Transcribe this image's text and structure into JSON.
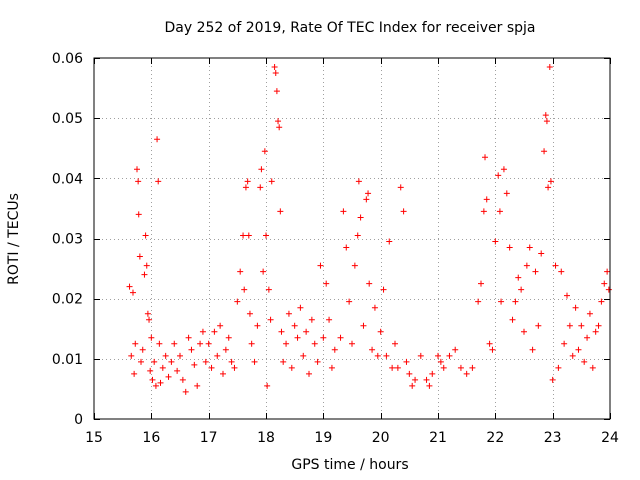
{
  "chart_data": {
    "type": "scatter",
    "title": "Day 252 of 2019, Rate Of TEC Index for receiver spja",
    "xlabel": "GPS time / hours",
    "ylabel": "ROTI / TECUs",
    "xlim": [
      15,
      24
    ],
    "ylim": [
      0,
      0.06
    ],
    "xticks": [
      15,
      16,
      17,
      18,
      19,
      20,
      21,
      22,
      23,
      24
    ],
    "xtick_labels": [
      "15",
      "16",
      "17",
      "18",
      "19",
      "20",
      "21",
      "22",
      "23",
      "24"
    ],
    "yticks": [
      0,
      0.01,
      0.02,
      0.03,
      0.04,
      0.05,
      0.06
    ],
    "ytick_labels": [
      "0",
      "0.01",
      "0.02",
      "0.03",
      "0.04",
      "0.05",
      "0.06"
    ],
    "grid": true,
    "marker": "+",
    "color": "#ff0000",
    "series": [
      {
        "name": "ROTI",
        "points": [
          [
            15.62,
            0.022
          ],
          [
            15.65,
            0.0105
          ],
          [
            15.68,
            0.021
          ],
          [
            15.7,
            0.0075
          ],
          [
            15.72,
            0.0125
          ],
          [
            15.75,
            0.0415
          ],
          [
            15.77,
            0.0395
          ],
          [
            15.78,
            0.034
          ],
          [
            15.8,
            0.027
          ],
          [
            15.82,
            0.0095
          ],
          [
            15.85,
            0.0115
          ],
          [
            15.88,
            0.024
          ],
          [
            15.9,
            0.0305
          ],
          [
            15.92,
            0.0255
          ],
          [
            15.94,
            0.0175
          ],
          [
            15.96,
            0.0165
          ],
          [
            15.98,
            0.008
          ],
          [
            16.0,
            0.0135
          ],
          [
            16.02,
            0.0065
          ],
          [
            16.05,
            0.0095
          ],
          [
            16.08,
            0.0055
          ],
          [
            16.1,
            0.0465
          ],
          [
            16.12,
            0.0395
          ],
          [
            16.14,
            0.0125
          ],
          [
            16.16,
            0.006
          ],
          [
            16.2,
            0.0085
          ],
          [
            16.25,
            0.0105
          ],
          [
            16.3,
            0.007
          ],
          [
            16.35,
            0.0095
          ],
          [
            16.4,
            0.0125
          ],
          [
            16.45,
            0.008
          ],
          [
            16.5,
            0.0105
          ],
          [
            16.55,
            0.0065
          ],
          [
            16.6,
            0.0045
          ],
          [
            16.65,
            0.0135
          ],
          [
            16.7,
            0.0115
          ],
          [
            16.75,
            0.009
          ],
          [
            16.8,
            0.0055
          ],
          [
            16.85,
            0.0125
          ],
          [
            16.9,
            0.0145
          ],
          [
            16.95,
            0.0095
          ],
          [
            17.0,
            0.0125
          ],
          [
            17.05,
            0.0085
          ],
          [
            17.1,
            0.0145
          ],
          [
            17.15,
            0.0105
          ],
          [
            17.2,
            0.0155
          ],
          [
            17.25,
            0.0075
          ],
          [
            17.3,
            0.0115
          ],
          [
            17.35,
            0.0135
          ],
          [
            17.4,
            0.0095
          ],
          [
            17.45,
            0.0085
          ],
          [
            17.5,
            0.0195
          ],
          [
            17.55,
            0.0245
          ],
          [
            17.6,
            0.0305
          ],
          [
            17.62,
            0.0215
          ],
          [
            17.65,
            0.0385
          ],
          [
            17.68,
            0.0395
          ],
          [
            17.7,
            0.0305
          ],
          [
            17.72,
            0.0175
          ],
          [
            17.75,
            0.0125
          ],
          [
            17.8,
            0.0095
          ],
          [
            17.85,
            0.0155
          ],
          [
            17.9,
            0.0385
          ],
          [
            17.92,
            0.0415
          ],
          [
            17.95,
            0.0245
          ],
          [
            17.98,
            0.0445
          ],
          [
            18.0,
            0.0305
          ],
          [
            18.02,
            0.0055
          ],
          [
            18.05,
            0.0215
          ],
          [
            18.08,
            0.0165
          ],
          [
            18.1,
            0.0395
          ],
          [
            18.15,
            0.0585
          ],
          [
            18.17,
            0.0575
          ],
          [
            18.19,
            0.0545
          ],
          [
            18.21,
            0.0495
          ],
          [
            18.23,
            0.0485
          ],
          [
            18.25,
            0.0345
          ],
          [
            18.27,
            0.0145
          ],
          [
            18.3,
            0.0095
          ],
          [
            18.35,
            0.0125
          ],
          [
            18.4,
            0.0175
          ],
          [
            18.45,
            0.0085
          ],
          [
            18.5,
            0.0155
          ],
          [
            18.55,
            0.0135
          ],
          [
            18.6,
            0.0185
          ],
          [
            18.65,
            0.0105
          ],
          [
            18.7,
            0.0145
          ],
          [
            18.75,
            0.0075
          ],
          [
            18.8,
            0.0165
          ],
          [
            18.85,
            0.0125
          ],
          [
            18.9,
            0.0095
          ],
          [
            18.95,
            0.0255
          ],
          [
            19.0,
            0.0135
          ],
          [
            19.05,
            0.0225
          ],
          [
            19.1,
            0.0165
          ],
          [
            19.15,
            0.0085
          ],
          [
            19.2,
            0.0115
          ],
          [
            19.3,
            0.0135
          ],
          [
            19.35,
            0.0345
          ],
          [
            19.4,
            0.0285
          ],
          [
            19.45,
            0.0195
          ],
          [
            19.5,
            0.0125
          ],
          [
            19.55,
            0.0255
          ],
          [
            19.6,
            0.0305
          ],
          [
            19.62,
            0.0395
          ],
          [
            19.65,
            0.0335
          ],
          [
            19.7,
            0.0155
          ],
          [
            19.75,
            0.0365
          ],
          [
            19.78,
            0.0375
          ],
          [
            19.8,
            0.0225
          ],
          [
            19.85,
            0.0115
          ],
          [
            19.9,
            0.0185
          ],
          [
            19.95,
            0.0105
          ],
          [
            20.0,
            0.0145
          ],
          [
            20.05,
            0.0215
          ],
          [
            20.1,
            0.0105
          ],
          [
            20.15,
            0.0295
          ],
          [
            20.2,
            0.0085
          ],
          [
            20.25,
            0.0125
          ],
          [
            20.3,
            0.0085
          ],
          [
            20.35,
            0.0385
          ],
          [
            20.4,
            0.0345
          ],
          [
            20.45,
            0.0095
          ],
          [
            20.5,
            0.0075
          ],
          [
            20.55,
            0.0055
          ],
          [
            20.6,
            0.0065
          ],
          [
            20.7,
            0.0105
          ],
          [
            20.8,
            0.0065
          ],
          [
            20.85,
            0.0055
          ],
          [
            20.9,
            0.0075
          ],
          [
            21.0,
            0.0105
          ],
          [
            21.05,
            0.0095
          ],
          [
            21.1,
            0.0085
          ],
          [
            21.2,
            0.0105
          ],
          [
            21.3,
            0.0115
          ],
          [
            21.4,
            0.0085
          ],
          [
            21.5,
            0.0075
          ],
          [
            21.6,
            0.0085
          ],
          [
            21.7,
            0.0195
          ],
          [
            21.75,
            0.0225
          ],
          [
            21.8,
            0.0345
          ],
          [
            21.82,
            0.0435
          ],
          [
            21.85,
            0.0365
          ],
          [
            21.9,
            0.0125
          ],
          [
            21.95,
            0.0115
          ],
          [
            22.0,
            0.0295
          ],
          [
            22.05,
            0.0405
          ],
          [
            22.08,
            0.0345
          ],
          [
            22.1,
            0.0195
          ],
          [
            22.15,
            0.0415
          ],
          [
            22.2,
            0.0375
          ],
          [
            22.25,
            0.0285
          ],
          [
            22.3,
            0.0165
          ],
          [
            22.35,
            0.0195
          ],
          [
            22.4,
            0.0235
          ],
          [
            22.45,
            0.0215
          ],
          [
            22.5,
            0.0145
          ],
          [
            22.55,
            0.0255
          ],
          [
            22.6,
            0.0285
          ],
          [
            22.65,
            0.0115
          ],
          [
            22.7,
            0.0245
          ],
          [
            22.75,
            0.0155
          ],
          [
            22.8,
            0.0275
          ],
          [
            22.85,
            0.0445
          ],
          [
            22.88,
            0.0505
          ],
          [
            22.9,
            0.0495
          ],
          [
            22.92,
            0.0385
          ],
          [
            22.95,
            0.0585
          ],
          [
            22.97,
            0.0395
          ],
          [
            23.0,
            0.0065
          ],
          [
            23.05,
            0.0255
          ],
          [
            23.1,
            0.0085
          ],
          [
            23.15,
            0.0245
          ],
          [
            23.2,
            0.0125
          ],
          [
            23.25,
            0.0205
          ],
          [
            23.3,
            0.0155
          ],
          [
            23.35,
            0.0105
          ],
          [
            23.4,
            0.0185
          ],
          [
            23.45,
            0.0115
          ],
          [
            23.5,
            0.0155
          ],
          [
            23.55,
            0.0095
          ],
          [
            23.6,
            0.0135
          ],
          [
            23.65,
            0.0175
          ],
          [
            23.7,
            0.0085
          ],
          [
            23.75,
            0.0145
          ],
          [
            23.8,
            0.0155
          ],
          [
            23.85,
            0.0195
          ],
          [
            23.9,
            0.0225
          ],
          [
            23.95,
            0.0245
          ],
          [
            23.98,
            0.0215
          ]
        ]
      }
    ]
  }
}
